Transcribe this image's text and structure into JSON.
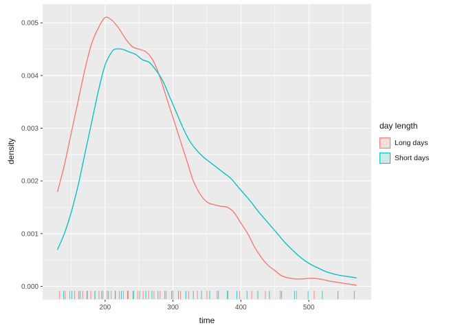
{
  "figure": {
    "xlabel": "time",
    "ylabel": "density",
    "legend": {
      "title": "day length",
      "items": [
        {
          "label": "Long days",
          "color": "#F8766D",
          "fill": "rgba(248,118,109,0.16)"
        },
        {
          "label": "Short days",
          "color": "#00BFC4",
          "fill": "rgba(0,191,196,0.16)"
        }
      ]
    }
  },
  "chart_data": {
    "type": "line",
    "subtype": "density-with-rug",
    "title": "",
    "xlabel": "time",
    "ylabel": "density",
    "xlim": [
      108,
      592
    ],
    "ylim": [
      -0.000255,
      0.005355
    ],
    "x_ticks": [
      200,
      300,
      400,
      500
    ],
    "x_tick_labels": [
      "200",
      "300",
      "400",
      "500"
    ],
    "x_minor_ticks": [
      150,
      250,
      350,
      450,
      550
    ],
    "y_ticks": [
      0,
      0.001,
      0.002,
      0.003,
      0.004,
      0.005
    ],
    "y_tick_labels": [
      "0.000",
      "0.001",
      "0.002",
      "0.003",
      "0.004",
      "0.005"
    ],
    "y_minor_ticks": [
      0.0005,
      0.0015,
      0.0025,
      0.0035,
      0.0045
    ],
    "grid": true,
    "legend_position": "right",
    "panel_bg": "#EBEBEB",
    "grid_color": "#FFFFFF",
    "tick_color": "#333333",
    "tick_label_color": "#4D4D4D",
    "series": [
      {
        "name": "Long days",
        "color": "#F8766D",
        "points": [
          [
            130,
            0.0018
          ],
          [
            140,
            0.0023
          ],
          [
            150,
            0.0029
          ],
          [
            160,
            0.0035
          ],
          [
            170,
            0.0041
          ],
          [
            180,
            0.0046
          ],
          [
            190,
            0.0049
          ],
          [
            200,
            0.0051
          ],
          [
            210,
            0.00505
          ],
          [
            220,
            0.0049
          ],
          [
            230,
            0.0047
          ],
          [
            240,
            0.00455
          ],
          [
            250,
            0.0045
          ],
          [
            260,
            0.00445
          ],
          [
            270,
            0.0043
          ],
          [
            280,
            0.004
          ],
          [
            290,
            0.0036
          ],
          [
            300,
            0.0032
          ],
          [
            310,
            0.0028
          ],
          [
            320,
            0.0024
          ],
          [
            330,
            0.002
          ],
          [
            340,
            0.00175
          ],
          [
            350,
            0.0016
          ],
          [
            360,
            0.00155
          ],
          [
            370,
            0.00152
          ],
          [
            380,
            0.0015
          ],
          [
            390,
            0.0014
          ],
          [
            400,
            0.0012
          ],
          [
            410,
            0.001
          ],
          [
            420,
            0.00075
          ],
          [
            430,
            0.00055
          ],
          [
            440,
            0.0004
          ],
          [
            450,
            0.0003
          ],
          [
            460,
            0.0002
          ],
          [
            470,
            0.00016
          ],
          [
            480,
            0.00014
          ],
          [
            490,
            0.00014
          ],
          [
            500,
            0.00015
          ],
          [
            510,
            0.00015
          ],
          [
            520,
            0.00013
          ],
          [
            530,
            0.0001
          ],
          [
            540,
            8e-05
          ],
          [
            550,
            6e-05
          ],
          [
            560,
            4e-05
          ],
          [
            570,
            2e-05
          ]
        ]
      },
      {
        "name": "Short days",
        "color": "#00BFC4",
        "points": [
          [
            130,
            0.0007
          ],
          [
            140,
            0.001
          ],
          [
            150,
            0.0014
          ],
          [
            160,
            0.0019
          ],
          [
            170,
            0.0025
          ],
          [
            180,
            0.0031
          ],
          [
            190,
            0.0037
          ],
          [
            200,
            0.0042
          ],
          [
            210,
            0.00445
          ],
          [
            215,
            0.0045
          ],
          [
            225,
            0.0045
          ],
          [
            235,
            0.00445
          ],
          [
            245,
            0.0044
          ],
          [
            255,
            0.0043
          ],
          [
            265,
            0.00425
          ],
          [
            275,
            0.0041
          ],
          [
            285,
            0.0039
          ],
          [
            295,
            0.0036
          ],
          [
            305,
            0.0033
          ],
          [
            315,
            0.003
          ],
          [
            325,
            0.00275
          ],
          [
            335,
            0.00258
          ],
          [
            345,
            0.00245
          ],
          [
            355,
            0.00235
          ],
          [
            365,
            0.00225
          ],
          [
            375,
            0.00215
          ],
          [
            385,
            0.00205
          ],
          [
            395,
            0.0019
          ],
          [
            405,
            0.00175
          ],
          [
            415,
            0.0016
          ],
          [
            425,
            0.00143
          ],
          [
            435,
            0.00128
          ],
          [
            445,
            0.00113
          ],
          [
            455,
            0.00098
          ],
          [
            465,
            0.00083
          ],
          [
            475,
            0.0007
          ],
          [
            485,
            0.00058
          ],
          [
            495,
            0.00048
          ],
          [
            505,
            0.0004
          ],
          [
            515,
            0.00034
          ],
          [
            525,
            0.00028
          ],
          [
            535,
            0.00024
          ],
          [
            545,
            0.00021
          ],
          [
            555,
            0.00019
          ],
          [
            565,
            0.00017
          ],
          [
            570,
            0.00016
          ]
        ]
      }
    ],
    "rug": [
      {
        "name": "Long days",
        "color": "#F8766D",
        "x": [
          133,
          141,
          148,
          155,
          161,
          167,
          173,
          179,
          185,
          191,
          197,
          203,
          209,
          215,
          221,
          227,
          234,
          241,
          248,
          256,
          264,
          272,
          281,
          290,
          300,
          311,
          323,
          336,
          350,
          365,
          381,
          398,
          416,
          436,
          458,
          482,
          508
        ]
      },
      {
        "name": "Short days",
        "color": "#00BFC4",
        "x": [
          139,
          151,
          163,
          174,
          185,
          195,
          205,
          215,
          224,
          233,
          242,
          251,
          260,
          269,
          278,
          288,
          298,
          308,
          319,
          330,
          342,
          354,
          367,
          380,
          394,
          409,
          425,
          442,
          460,
          479,
          499,
          520,
          543,
          567
        ]
      }
    ]
  }
}
